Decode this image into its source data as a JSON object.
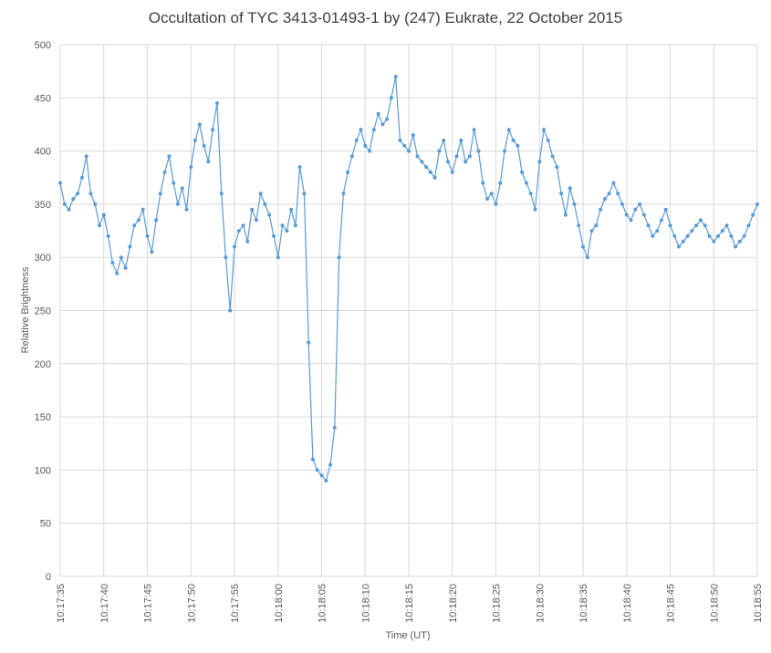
{
  "chart_data": {
    "type": "line",
    "title": "Occultation of TYC 3413-01493-1 by (247) Eukrate, 22 October 2015",
    "xlabel": "Time (UT)",
    "ylabel": "Relative Brightness",
    "ylim": [
      0,
      500
    ],
    "y_ticks": [
      "0",
      "50",
      "100",
      "150",
      "200",
      "250",
      "300",
      "350",
      "400",
      "450",
      "500"
    ],
    "x_ticks": [
      "10:17:35",
      "10:17:40",
      "10:17:45",
      "10:17:50",
      "10:17:55",
      "10:18:00",
      "10:18:05",
      "10:18:10",
      "10:18:15",
      "10:18:20",
      "10:18:25",
      "10:18:30",
      "10:18:35",
      "10:18:40",
      "10:18:45",
      "10:18:50",
      "10:18:55"
    ],
    "xlim_seconds": [
      0,
      80
    ],
    "grid": true,
    "line_color": "#5b9bd5",
    "markers": true,
    "series": [
      {
        "x": [
          0,
          0.5,
          1,
          1.5,
          2,
          2.5,
          3,
          3.5,
          4,
          4.5,
          5,
          5.5,
          6,
          6.5,
          7,
          7.5,
          8,
          8.5,
          9,
          9.5,
          10,
          10.5,
          11,
          11.5,
          12,
          12.5,
          13,
          13.5,
          14,
          14.5,
          15,
          15.5,
          16,
          16.5,
          17,
          17.5,
          18,
          18.5,
          19,
          19.5,
          20,
          20.5,
          21,
          21.5,
          22,
          22.5,
          23,
          23.5,
          24,
          24.5,
          25,
          25.5,
          26,
          26.5,
          27,
          27.5,
          28,
          28.5,
          29,
          29.5,
          30,
          30.5,
          31,
          31.5,
          32,
          32.5,
          33,
          33.5,
          34,
          34.5,
          35,
          35.5,
          36,
          36.5,
          37,
          37.5,
          38,
          38.5,
          39,
          39.5,
          40,
          40.5,
          41,
          41.5,
          42,
          42.5,
          43,
          43.5,
          44,
          44.5,
          45,
          45.5,
          46,
          46.5,
          47,
          47.5,
          48,
          48.5,
          49,
          49.5,
          50,
          50.5,
          51,
          51.5,
          52,
          52.5,
          53,
          53.5,
          54,
          54.5,
          55,
          55.5,
          56,
          56.5,
          57,
          57.5,
          58,
          58.5,
          59,
          59.5,
          60,
          60.5,
          61,
          61.5,
          62,
          62.5,
          63,
          63.5,
          64,
          64.5,
          65,
          65.5,
          66,
          66.5,
          67,
          67.5,
          68,
          68.5,
          69,
          69.5,
          70,
          70.5,
          71,
          71.5,
          72,
          72.5,
          73,
          73.5,
          74,
          74.5,
          75,
          75.5,
          76,
          76.5,
          77,
          77.5,
          78,
          78.5,
          79,
          79.5,
          80
        ],
        "values": [
          370,
          350,
          345,
          355,
          360,
          375,
          395,
          360,
          350,
          330,
          340,
          320,
          295,
          285,
          300,
          290,
          310,
          330,
          335,
          345,
          320,
          305,
          335,
          360,
          380,
          395,
          370,
          350,
          365,
          345,
          385,
          410,
          425,
          405,
          390,
          420,
          445,
          360,
          300,
          250,
          310,
          325,
          330,
          315,
          345,
          335,
          360,
          350,
          340,
          320,
          300,
          330,
          325,
          345,
          330,
          385,
          360,
          220,
          110,
          100,
          95,
          90,
          105,
          140,
          300,
          360,
          380,
          395,
          410,
          420,
          405,
          400,
          420,
          435,
          425,
          430,
          450,
          470,
          410,
          405,
          400,
          415,
          395,
          390,
          385,
          380,
          375,
          400,
          410,
          390,
          380,
          395,
          410,
          390,
          395,
          420,
          400,
          370,
          355,
          360,
          350,
          370,
          400,
          420,
          410,
          405,
          380,
          370,
          360,
          345,
          390,
          420,
          410,
          395,
          385,
          360,
          340,
          365,
          350,
          330,
          310,
          300,
          325,
          330,
          345,
          355,
          360,
          370,
          360,
          350,
          340,
          335,
          345,
          350,
          340,
          330,
          320,
          325,
          335,
          345,
          330,
          320,
          310,
          315,
          320,
          325,
          330,
          335,
          330,
          320,
          315,
          320,
          325,
          330,
          320,
          310,
          315,
          320,
          330,
          340,
          350
        ]
      }
    ]
  }
}
